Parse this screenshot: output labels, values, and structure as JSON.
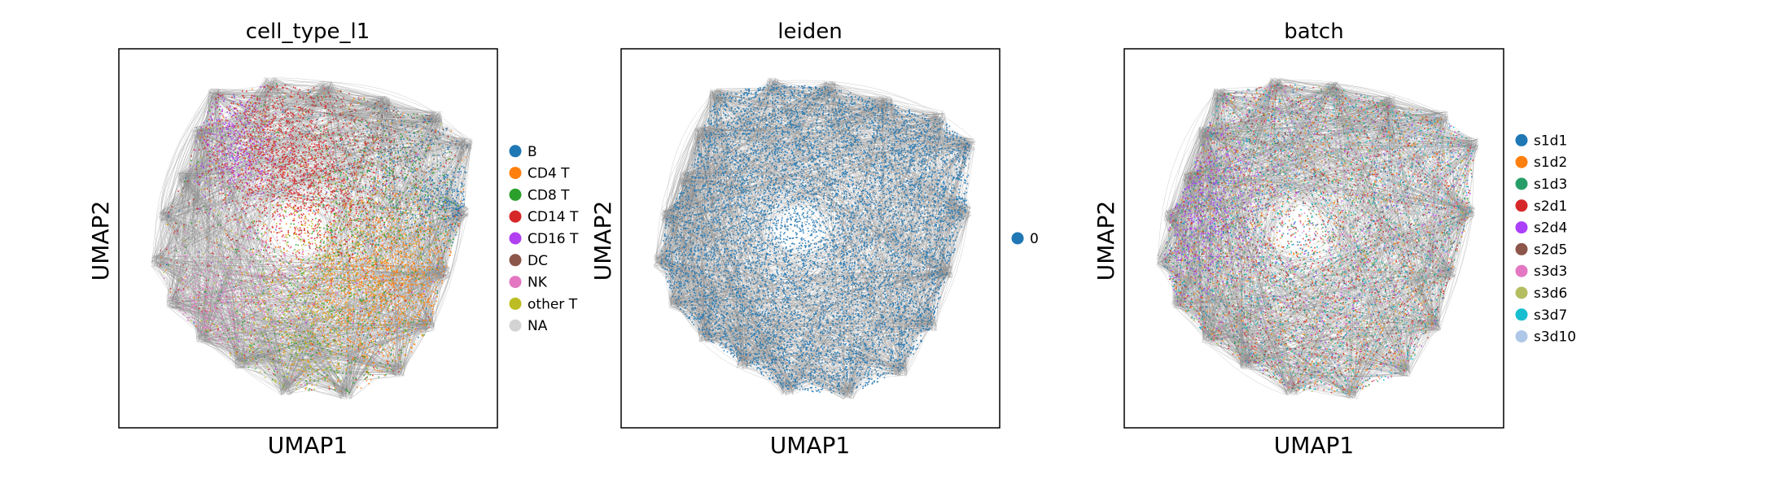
{
  "chart_data": [
    {
      "type": "scatter",
      "title": "cell_type_l1",
      "xlabel": "UMAP1",
      "ylabel": "UMAP2",
      "axis_ticks": "none",
      "grid": false,
      "edges": "gray graph edges drawn beneath points",
      "legend_position": "right",
      "legend": [
        {
          "label": "B",
          "color": "#1f77b4"
        },
        {
          "label": "CD4 T",
          "color": "#ff7f0e"
        },
        {
          "label": "CD8 T",
          "color": "#2ca02c"
        },
        {
          "label": "CD14 T",
          "color": "#d62728"
        },
        {
          "label": "CD16 T",
          "color": "#b040f0"
        },
        {
          "label": "DC",
          "color": "#8c564b"
        },
        {
          "label": "NK",
          "color": "#e377c2"
        },
        {
          "label": "other T",
          "color": "#bcbd22"
        },
        {
          "label": "NA",
          "color": "#d3d3d3"
        }
      ]
    },
    {
      "type": "scatter",
      "title": "leiden",
      "xlabel": "UMAP1",
      "ylabel": "UMAP2",
      "axis_ticks": "none",
      "grid": false,
      "edges": "gray graph edges drawn beneath points",
      "legend_position": "right",
      "legend": [
        {
          "label": "0",
          "color": "#1f77b4"
        }
      ]
    },
    {
      "type": "scatter",
      "title": "batch",
      "xlabel": "UMAP1",
      "ylabel": "UMAP2",
      "axis_ticks": "none",
      "grid": false,
      "edges": "gray graph edges drawn beneath points",
      "legend_position": "right",
      "legend": [
        {
          "label": "s1d1",
          "color": "#1f77b4"
        },
        {
          "label": "s1d2",
          "color": "#ff7f0e"
        },
        {
          "label": "s1d3",
          "color": "#279e68"
        },
        {
          "label": "s2d1",
          "color": "#d62728"
        },
        {
          "label": "s2d4",
          "color": "#aa40fc"
        },
        {
          "label": "s2d5",
          "color": "#8c564b"
        },
        {
          "label": "s3d3",
          "color": "#e377c2"
        },
        {
          "label": "s3d6",
          "color": "#b5bd61"
        },
        {
          "label": "s3d7",
          "color": "#17becf"
        },
        {
          "label": "s3d10",
          "color": "#aec7e8"
        }
      ]
    }
  ]
}
